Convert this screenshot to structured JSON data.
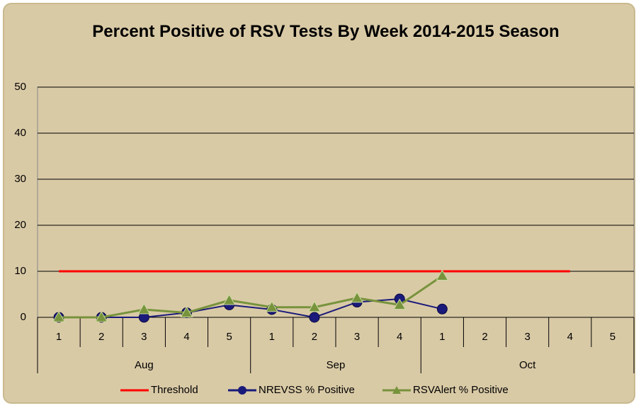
{
  "chart_data": {
    "type": "line",
    "title": "Percent Positive of RSV Tests By Week 2014-2015 Season",
    "category_groups": [
      {
        "name": "Aug",
        "categories": [
          "1",
          "2",
          "3",
          "4",
          "5"
        ]
      },
      {
        "name": "Sep",
        "categories": [
          "1",
          "2",
          "3",
          "4"
        ]
      },
      {
        "name": "Oct",
        "categories": [
          "1",
          "2",
          "3",
          "4",
          "5"
        ]
      }
    ],
    "series": [
      {
        "name": "Threshold",
        "color": "#ff0000",
        "marker": "none",
        "values": [
          10,
          10,
          10,
          10,
          10,
          10,
          10,
          10,
          10,
          10,
          10,
          10,
          10,
          null
        ]
      },
      {
        "name": "NREVSS % Positive",
        "color": "#1a1a7a",
        "marker": "circle",
        "values": [
          0,
          0,
          0,
          1,
          2.7,
          1.7,
          0,
          3.3,
          4,
          1.8,
          null,
          null,
          null,
          null
        ]
      },
      {
        "name": "RSVAlert % Positive",
        "color": "#77933c",
        "marker": "triangle",
        "values": [
          0,
          0,
          1.7,
          1,
          3.7,
          2.2,
          2.2,
          4.2,
          2.7,
          9,
          null,
          null,
          null,
          null
        ]
      }
    ],
    "ylim": [
      0,
      50
    ],
    "yticks": [
      0,
      10,
      20,
      30,
      40,
      50
    ],
    "grid": true,
    "legend": "bottom"
  }
}
